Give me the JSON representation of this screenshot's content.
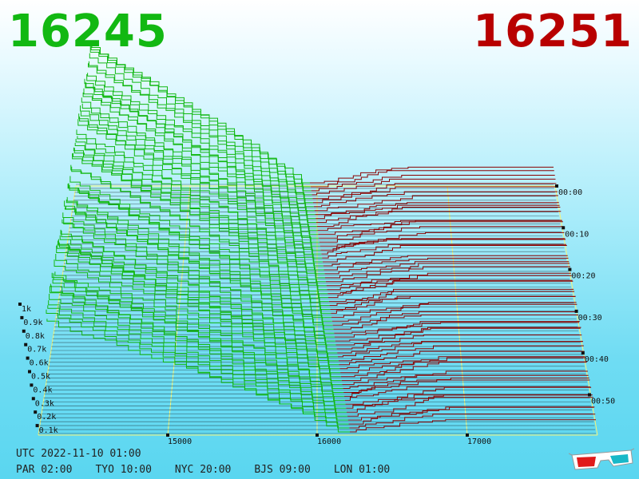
{
  "header": {
    "bid_price": "16245",
    "ask_price": "16251",
    "bid_color": "#12b812",
    "ask_color": "#b80000"
  },
  "footer": {
    "utc": "UTC 2022-11-10 01:00",
    "zones": [
      "PAR 02:00",
      "TYO 10:00",
      "NYC 20:00",
      "BJS 09:00",
      "LON 01:00"
    ]
  },
  "icons": {
    "glasses": "3d-glasses-icon"
  },
  "chart_data": {
    "type": "area",
    "x_ticks": [
      "15000",
      "16000",
      "17000"
    ],
    "depth_ticks": [
      "1k",
      "0.9k",
      "0.8k",
      "0.7k",
      "0.6k",
      "0.5k",
      "0.4k",
      "0.3k",
      "0.2k",
      "0.1k"
    ],
    "time_ticks": [
      "00:00",
      "00:10",
      "00:20",
      "00:30",
      "00:40",
      "00:50"
    ],
    "bid_color": "#12b812",
    "ask_color": "#8b0000",
    "grid": true
  }
}
